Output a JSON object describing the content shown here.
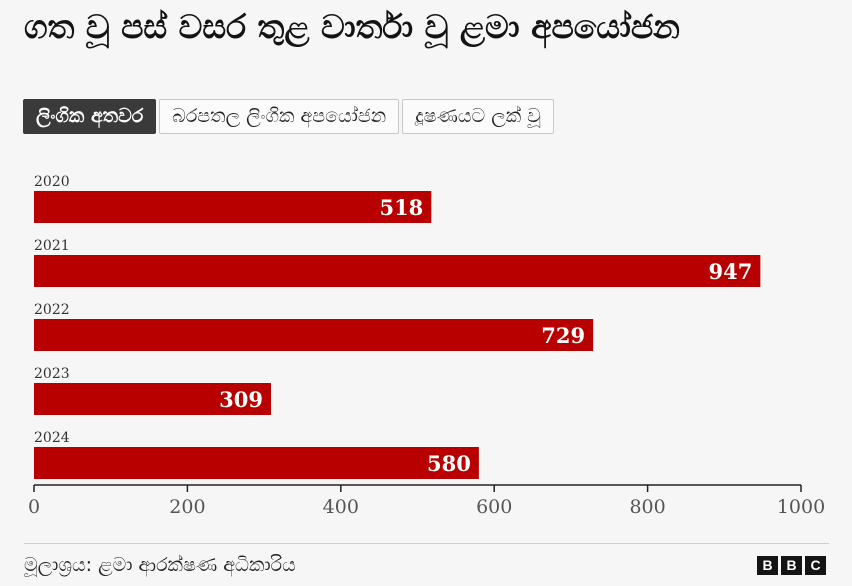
{
  "title": "ගත වූ පස් වසර තුළ වාර්තා වූ ළමා අපයෝජන",
  "tabs": [
    {
      "label": "ලිංගික අතවර",
      "active": true
    },
    {
      "label": "බරපතල ලිංගික අපයෝජන",
      "active": false
    },
    {
      "label": "දූෂණයට ලක් වූ",
      "active": false
    }
  ],
  "chart_data": {
    "type": "bar",
    "orientation": "horizontal",
    "categories": [
      "2020",
      "2021",
      "2022",
      "2023",
      "2024"
    ],
    "values": [
      518,
      947,
      729,
      309,
      580
    ],
    "xlim": [
      0,
      1000
    ],
    "xticks": [
      0,
      200,
      400,
      600,
      800,
      1000
    ],
    "title": "",
    "xlabel": "",
    "ylabel": "",
    "grid": false,
    "bar_color": "#b80000",
    "data_labels": true
  },
  "source": "මූලාශ්‍රය: ළමා ආරක්ෂණ අධිකාරිය",
  "branding": {
    "letters": [
      "B",
      "B",
      "C"
    ]
  },
  "colors": {
    "bar": "#b80000",
    "background": "#f6f6f6",
    "active_tab": "#3a3a3a"
  }
}
